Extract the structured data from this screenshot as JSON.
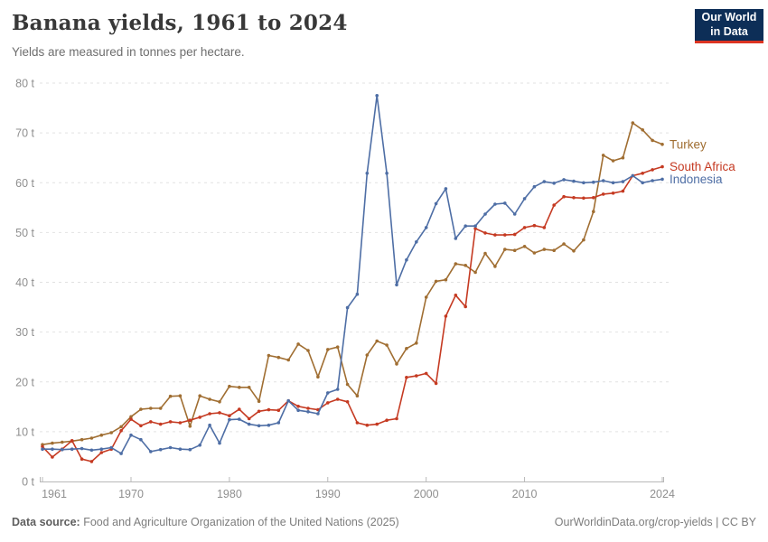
{
  "logo": {
    "line1": "Our World",
    "line2": "in Data",
    "bg_color": "#0d2e57",
    "accent_color": "#dc3522"
  },
  "footer": {
    "datasource_label": "Data source:",
    "datasource_text": " Food and Agriculture Organization of the United Nations (2025)",
    "link_text": "OurWorldinData.org/crop-yields | CC BY"
  },
  "chart_data": {
    "type": "line",
    "title": "Banana yields, 1961 to 2024",
    "subtitle": "Yields are measured in tonnes per hectare.",
    "unit_suffix": " t",
    "ylim": [
      0,
      80
    ],
    "xlim": [
      1961,
      2024
    ],
    "yticks": [
      0,
      10,
      20,
      30,
      40,
      50,
      60,
      70,
      80
    ],
    "xticks": [
      1961,
      1970,
      1980,
      1990,
      2000,
      2010,
      2024
    ],
    "grid": "horizontal-dashed",
    "legend_position": "end-of-line-labels",
    "grid_color": "#e2e2e2",
    "axis_color": "#b9b9b9",
    "tick_label_color": "#8f8f8f",
    "x": [
      1961,
      1962,
      1963,
      1964,
      1965,
      1966,
      1967,
      1968,
      1969,
      1970,
      1971,
      1972,
      1973,
      1974,
      1975,
      1976,
      1977,
      1978,
      1979,
      1980,
      1981,
      1982,
      1983,
      1984,
      1985,
      1986,
      1987,
      1988,
      1989,
      1990,
      1991,
      1992,
      1993,
      1994,
      1995,
      1996,
      1997,
      1998,
      1999,
      2000,
      2001,
      2002,
      2003,
      2004,
      2005,
      2006,
      2007,
      2008,
      2009,
      2010,
      2011,
      2012,
      2013,
      2014,
      2015,
      2016,
      2017,
      2018,
      2019,
      2020,
      2021,
      2022,
      2023,
      2024
    ],
    "series": [
      {
        "name": "Turkey",
        "color": "#a06e32",
        "values": [
          7.4,
          7.7,
          7.9,
          8.1,
          8.4,
          8.7,
          9.3,
          9.8,
          11.0,
          13.0,
          14.5,
          14.7,
          14.7,
          17.1,
          17.2,
          11.1,
          17.2,
          16.5,
          16.0,
          19.1,
          18.9,
          18.9,
          16.1,
          25.3,
          24.9,
          24.4,
          27.6,
          26.3,
          21.0,
          26.5,
          27.0,
          19.5,
          17.2,
          25.4,
          28.2,
          27.4,
          23.6,
          26.7,
          27.8,
          37.0,
          40.2,
          40.5,
          43.7,
          43.4,
          42.0,
          45.8,
          43.2,
          46.6,
          46.4,
          47.2,
          45.9,
          46.6,
          46.4,
          47.7,
          46.3,
          48.5,
          54.2,
          65.5,
          64.4,
          65.0,
          72.0,
          70.6,
          68.5,
          67.7
        ]
      },
      {
        "name": "South Africa",
        "color": "#c53a22",
        "values": [
          7.0,
          4.9,
          6.5,
          8.2,
          4.5,
          4.0,
          5.8,
          6.5,
          10.2,
          12.5,
          11.2,
          12.0,
          11.5,
          12.0,
          11.8,
          12.3,
          12.9,
          13.6,
          13.8,
          13.2,
          14.5,
          12.6,
          14.1,
          14.4,
          14.3,
          16.2,
          15.1,
          14.7,
          14.4,
          15.8,
          16.5,
          16.0,
          11.8,
          11.3,
          11.5,
          12.3,
          12.6,
          20.9,
          21.2,
          21.7,
          19.7,
          33.2,
          37.4,
          35.1,
          50.8,
          49.9,
          49.5,
          49.5,
          49.6,
          51.0,
          51.4,
          51.0,
          55.5,
          57.2,
          57.0,
          56.9,
          57.0,
          57.7,
          57.9,
          58.3,
          61.4,
          61.9,
          62.6,
          63.2
        ]
      },
      {
        "name": "Indonesia",
        "color": "#4e6ea5",
        "values": [
          6.5,
          6.5,
          6.4,
          6.5,
          6.6,
          6.3,
          6.5,
          6.8,
          5.6,
          9.3,
          8.4,
          6.0,
          6.4,
          6.8,
          6.5,
          6.4,
          7.3,
          11.3,
          7.7,
          12.4,
          12.5,
          11.5,
          11.2,
          11.3,
          11.8,
          16.2,
          14.3,
          14.0,
          13.6,
          17.8,
          18.5,
          34.9,
          37.6,
          61.9,
          77.5,
          61.9,
          39.5,
          44.5,
          48.1,
          51.0,
          55.8,
          58.8,
          48.8,
          51.3,
          51.3,
          53.7,
          55.7,
          55.9,
          53.7,
          56.8,
          59.2,
          60.2,
          59.9,
          60.6,
          60.3,
          60.0,
          60.1,
          60.4,
          60.0,
          60.2,
          61.4,
          60.0,
          60.4,
          60.7
        ]
      }
    ]
  }
}
